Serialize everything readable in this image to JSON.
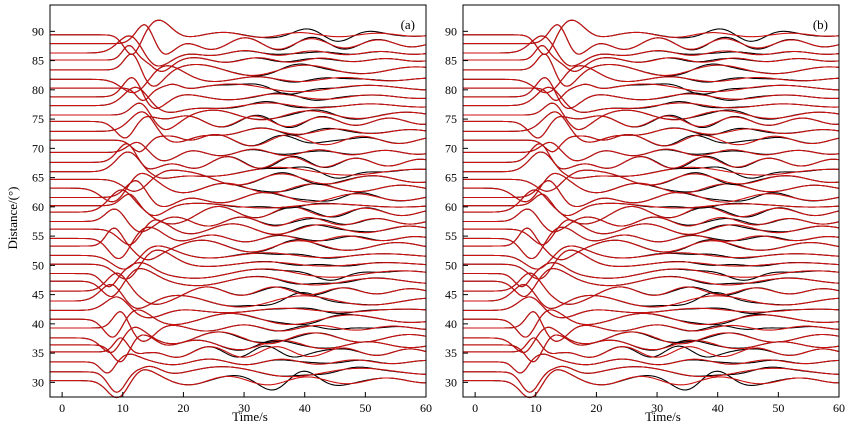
{
  "figure": {
    "ylabel": "Distance/(°)",
    "xlabel": "Time/s"
  },
  "colors": {
    "observed": "#000000",
    "synthetic": "#cc1111",
    "axis": "#000000"
  },
  "chart_data": [
    {
      "type": "line",
      "panel_label": "(a)",
      "xlabel": "Time/s",
      "ylabel": "Distance/(°)",
      "xlim": [
        -2,
        60
      ],
      "ylim": [
        27.5,
        94.5
      ],
      "xticks": [
        0,
        10,
        20,
        30,
        40,
        50,
        60
      ],
      "yticks": [
        30,
        35,
        40,
        45,
        50,
        55,
        60,
        65,
        70,
        75,
        80,
        85,
        90
      ],
      "grid": false,
      "series": [],
      "trace_baselines_deg": [
        30.3,
        31.8,
        33.5,
        35.2,
        36.4,
        37.6,
        39.3,
        40.8,
        42.3,
        43.9,
        45.6,
        47.3,
        48.6,
        50.2,
        51.7,
        53.3,
        54.6,
        56.2,
        57.5,
        59.1,
        60.2,
        61.6,
        63.2,
        64.7,
        66.0,
        67.6,
        69.3,
        71.4,
        72.9,
        74.6,
        75.7,
        77.3,
        78.8,
        80.3,
        81.8,
        83.4,
        85.1,
        86.3,
        87.9,
        89.4
      ],
      "trace_count": 40,
      "trace_colors": [
        "black",
        "red"
      ]
    },
    {
      "type": "line",
      "panel_label": "(b)",
      "xlabel": "Time/s",
      "ylabel": "",
      "xlim": [
        -2,
        60
      ],
      "ylim": [
        27.5,
        94.5
      ],
      "xticks": [
        0,
        10,
        20,
        30,
        40,
        50,
        60
      ],
      "yticks": [
        30,
        35,
        40,
        45,
        50,
        55,
        60,
        65,
        70,
        75,
        80,
        85,
        90
      ],
      "grid": false,
      "series": [],
      "trace_baselines_deg": [
        30.3,
        31.8,
        33.5,
        35.2,
        36.4,
        37.6,
        39.3,
        40.8,
        42.3,
        43.9,
        45.6,
        47.3,
        48.6,
        50.2,
        51.7,
        53.3,
        54.6,
        56.2,
        57.5,
        59.1,
        60.2,
        61.6,
        63.2,
        64.7,
        66.0,
        67.6,
        69.3,
        71.4,
        72.9,
        74.6,
        75.7,
        77.3,
        78.8,
        80.3,
        81.8,
        83.4,
        85.1,
        86.3,
        87.9,
        89.4
      ],
      "trace_count": 40,
      "trace_colors": [
        "black",
        "red"
      ]
    }
  ]
}
